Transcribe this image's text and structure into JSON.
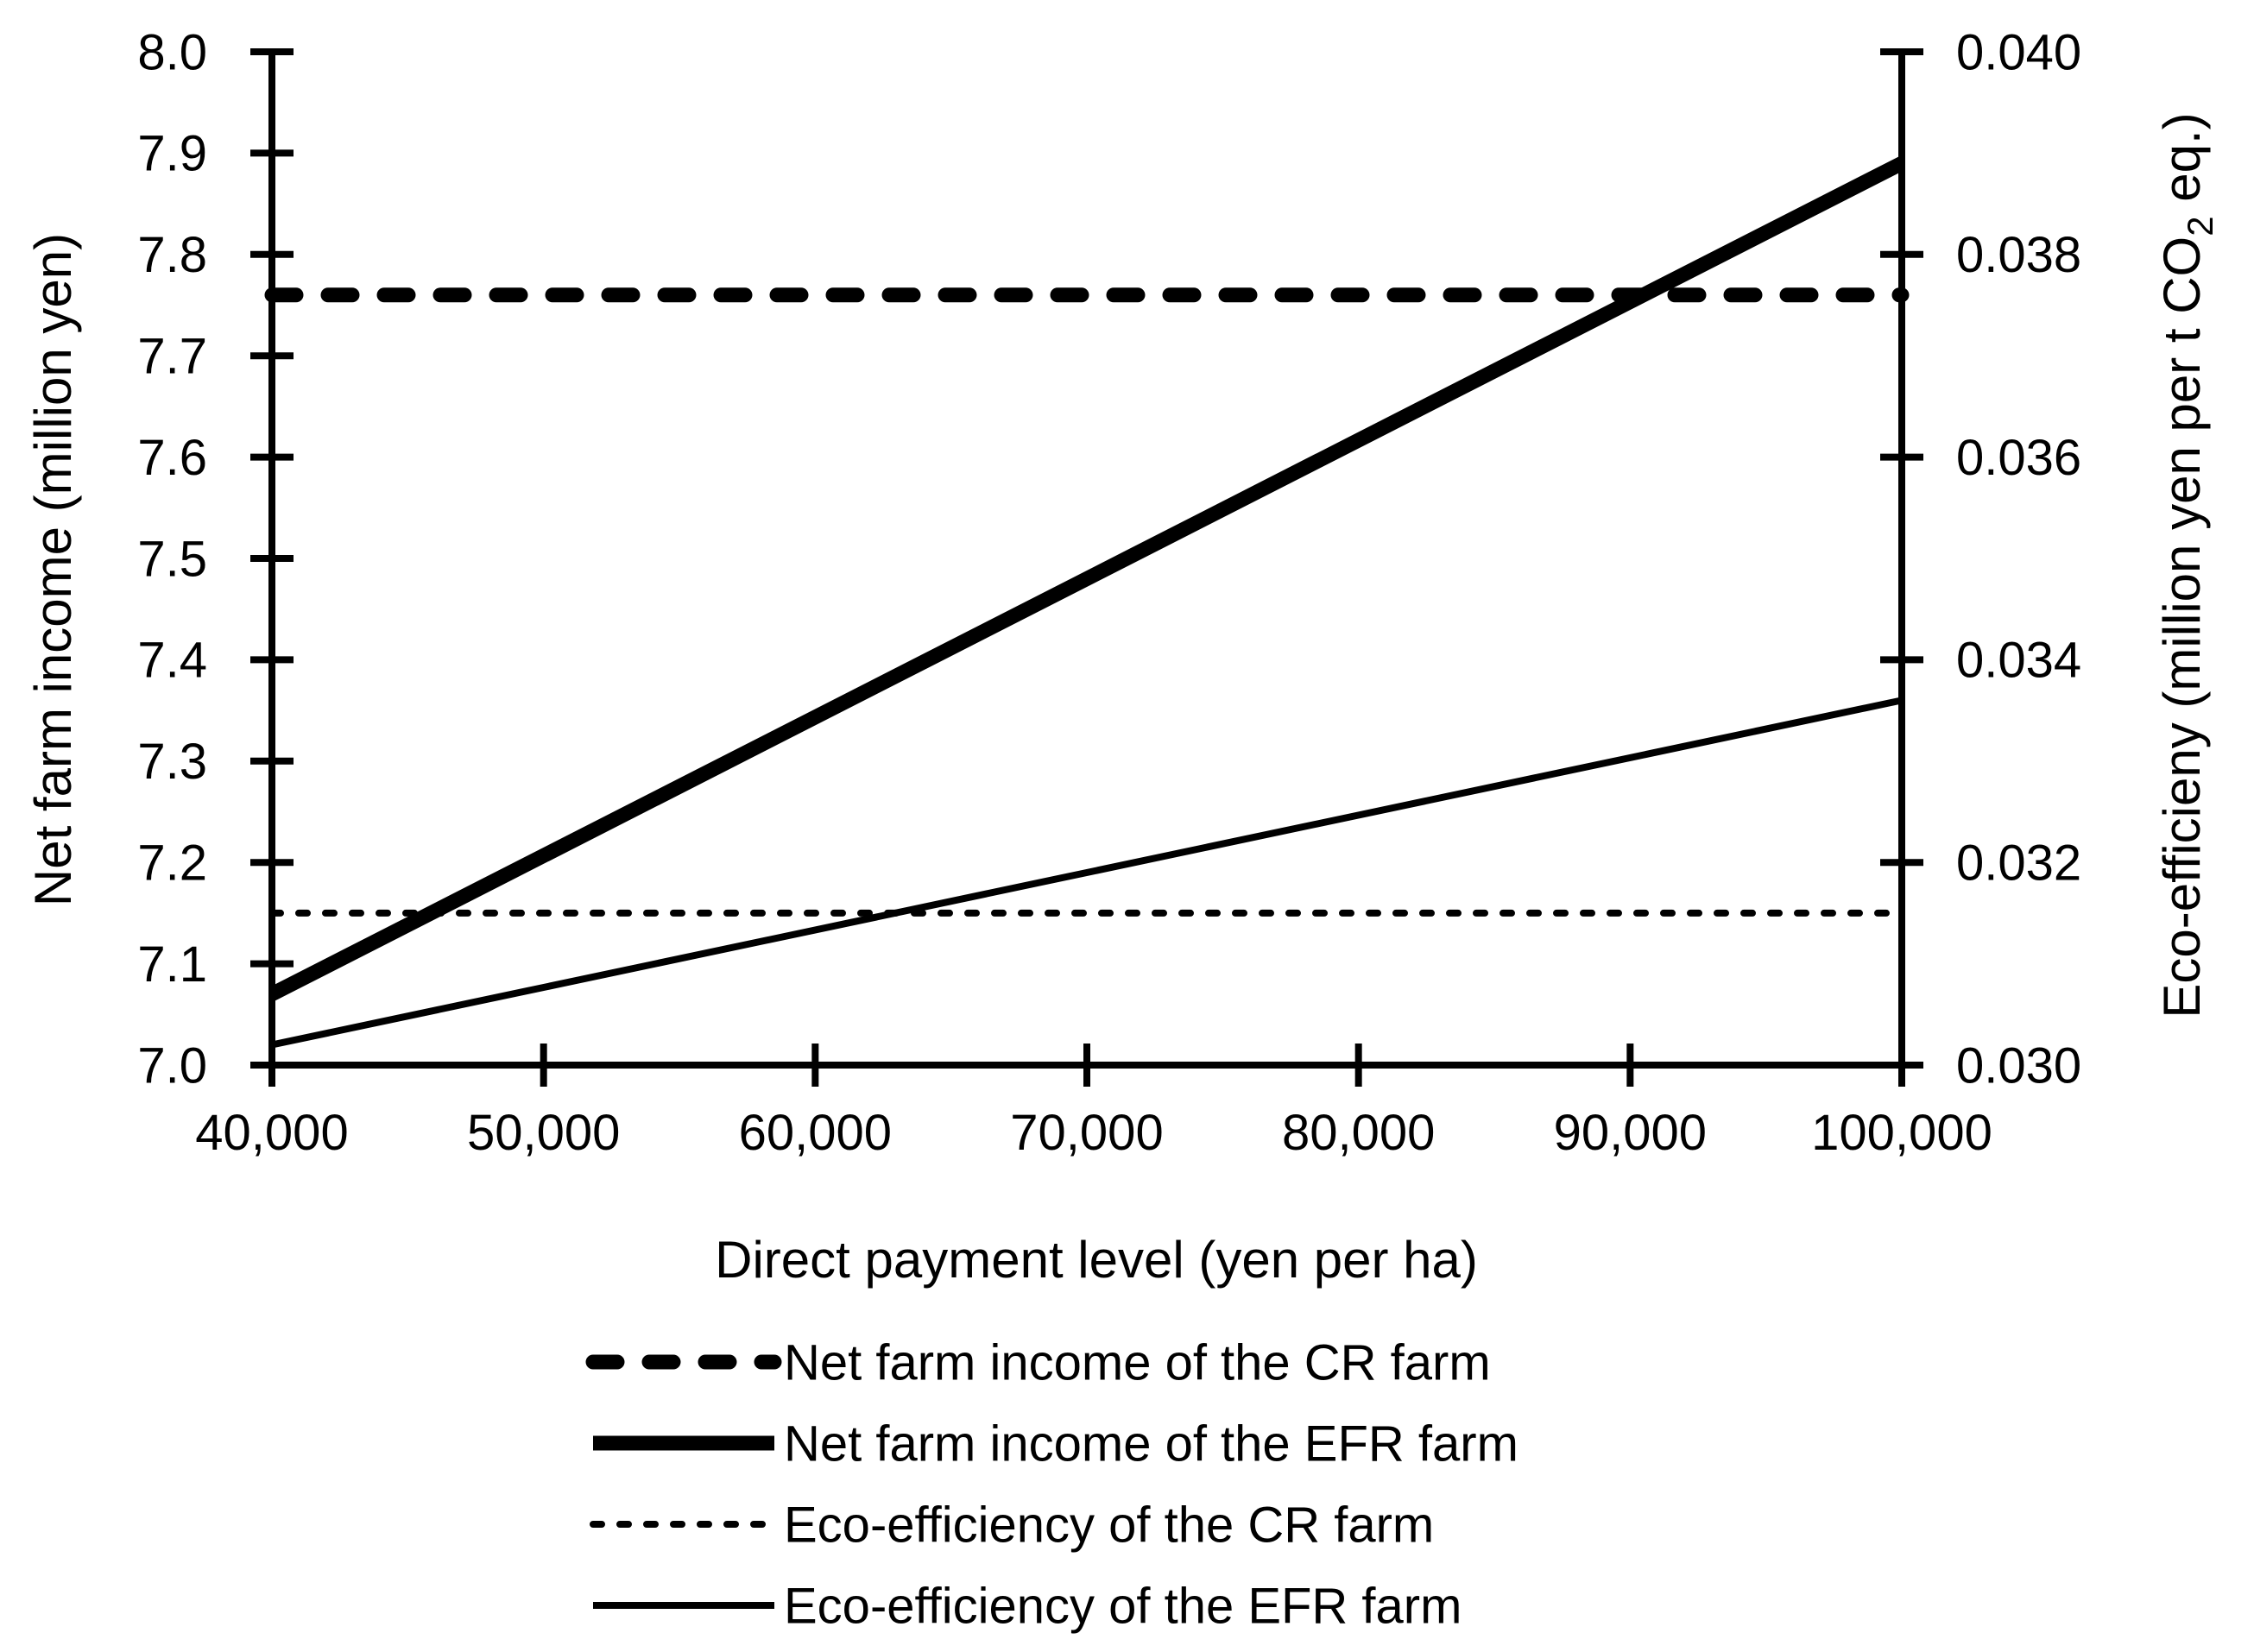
{
  "page": {
    "background_color": "#ffffff",
    "foreground_color": "#000000"
  },
  "chart_data": {
    "type": "line",
    "title": "",
    "grid": false,
    "x_axis": {
      "label": "Direct payment level (yen per ha)",
      "min": 40000,
      "max": 100000,
      "tick_values": [
        40000,
        50000,
        60000,
        70000,
        80000,
        90000,
        100000
      ],
      "tick_labels": [
        "40,000",
        "50,000",
        "60,000",
        "70,000",
        "80,000",
        "90,000",
        "100,000"
      ]
    },
    "y_axis_left": {
      "label": "Net farm income (million yen)",
      "min": 7.0,
      "max": 8.0,
      "tick_values": [
        8.0,
        7.9,
        7.8,
        7.7,
        7.6,
        7.5,
        7.4,
        7.3,
        7.2,
        7.1,
        7.0
      ],
      "tick_labels": [
        "8.0",
        "7.9",
        "7.8",
        "7.7",
        "7.6",
        "7.5",
        "7.4",
        "7.3",
        "7.2",
        "7.1",
        "7.0"
      ]
    },
    "y_axis_right": {
      "label_text": "Eco-efficieny (million yen per t CO2 eq.)",
      "label_parts": {
        "prefix": "Eco-efficieny (million yen per t CO",
        "subscript": "2",
        "suffix": " eq.)"
      },
      "min": 0.03,
      "max": 0.04,
      "tick_values": [
        0.04,
        0.038,
        0.036,
        0.034,
        0.032,
        0.03
      ],
      "tick_labels": [
        "0.040",
        "0.038",
        "0.036",
        "0.034",
        "0.032",
        "0.030"
      ]
    },
    "series": [
      {
        "name": "Net farm income of the CR farm",
        "axis": "left",
        "style": "thick-dashed",
        "x": [
          40000,
          100000
        ],
        "y": [
          7.76,
          7.76
        ]
      },
      {
        "name": "Net farm income of the EFR farm",
        "axis": "left",
        "style": "thick-solid",
        "x": [
          40000,
          100000
        ],
        "y": [
          7.07,
          7.89
        ]
      },
      {
        "name": "Eco-efficiency of the CR farm",
        "axis": "right",
        "style": "thin-dashed",
        "x": [
          40000,
          100000
        ],
        "y": [
          0.0315,
          0.0315
        ]
      },
      {
        "name": "Eco-efficiency of the EFR farm",
        "axis": "right",
        "style": "thin-solid",
        "x": [
          40000,
          100000
        ],
        "y": [
          0.0302,
          0.0336
        ]
      }
    ],
    "legend": {
      "position": "bottom",
      "entries": [
        "Net farm income of the CR farm",
        "Net farm income of the EFR farm",
        "Eco-efficiency of the CR farm",
        "Eco-efficiency of the EFR farm"
      ]
    }
  }
}
